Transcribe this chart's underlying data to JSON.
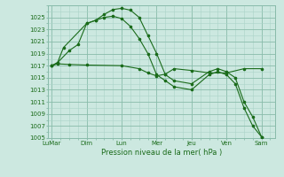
{
  "background_color": "#cce8e0",
  "grid_color_major": "#88bbaa",
  "grid_color_minor": "#aad4c8",
  "line_color": "#1a6b1a",
  "title": "Pression niveau de la mer( hPa )",
  "ylim": [
    1005,
    1027
  ],
  "yticks": [
    1005,
    1007,
    1009,
    1011,
    1013,
    1015,
    1017,
    1019,
    1021,
    1023,
    1025
  ],
  "xlabels": [
    "LuMar",
    "Dim",
    "Lun",
    "Mer",
    "Jeu",
    "Ven",
    "Sam"
  ],
  "x_positions": [
    0,
    2,
    4,
    6,
    8,
    10,
    12
  ],
  "series": [
    {
      "x": [
        0,
        0.33,
        0.67,
        2.0,
        2.5,
        3.0,
        3.5,
        4.0,
        4.5,
        5.0,
        5.5,
        6.0,
        6.5,
        7.0,
        8.0,
        9.0,
        9.5,
        10.0,
        10.5,
        11.0,
        11.5,
        12.0
      ],
      "y": [
        1017,
        1017.5,
        1020,
        1024,
        1024.5,
        1025.5,
        1026.3,
        1026.5,
        1026.2,
        1025,
        1022,
        1019,
        1015.5,
        1014.5,
        1014,
        1016,
        1016.5,
        1016,
        1015,
        1011,
        1008.5,
        1005.2
      ]
    },
    {
      "x": [
        0,
        0.33,
        1.0,
        1.5,
        2.0,
        2.5,
        3.0,
        3.5,
        4.0,
        4.5,
        5.0,
        5.5,
        6.0,
        6.5,
        7.0,
        8.0,
        9.0,
        9.5,
        10.0,
        10.5,
        11.0,
        11.5,
        12.0
      ],
      "y": [
        1017,
        1017.5,
        1019.5,
        1020.5,
        1024,
        1024.5,
        1025.0,
        1025.2,
        1024.8,
        1023.5,
        1021.5,
        1019,
        1015.5,
        1014.5,
        1013.5,
        1013,
        1015.5,
        1016.0,
        1015.5,
        1014,
        1010,
        1007,
        1005.2
      ]
    },
    {
      "x": [
        0,
        0.33,
        1.0,
        2.0,
        4.0,
        5.0,
        5.5,
        6.0,
        6.5,
        7.0,
        8.0,
        9.0,
        10.0,
        11.0,
        12.0
      ],
      "y": [
        1017,
        1017.3,
        1017.2,
        1017.1,
        1017.0,
        1016.5,
        1015.8,
        1015.3,
        1015.6,
        1016.5,
        1016.2,
        1015.8,
        1015.8,
        1016.5,
        1016.5
      ]
    }
  ]
}
